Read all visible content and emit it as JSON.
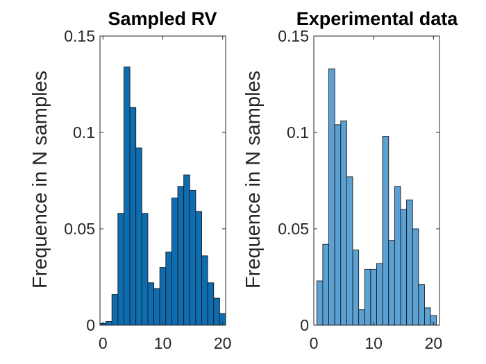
{
  "chart_data": [
    {
      "type": "bar",
      "title": "Sampled RV",
      "xlabel": "",
      "ylabel": "Frequence in N samples",
      "xlim": [
        -0.5,
        20.5
      ],
      "ylim": [
        0,
        0.15
      ],
      "xticks": [
        "0",
        "10",
        "20"
      ],
      "yticks": [
        "0",
        "0.05",
        "0.1",
        "0.15"
      ],
      "bar_color": "#0e6db0",
      "x": [
        0,
        1,
        2,
        3,
        4,
        5,
        6,
        7,
        8,
        9,
        10,
        11,
        12,
        13,
        14,
        15,
        16,
        17,
        18,
        19,
        20
      ],
      "values": [
        0.001,
        0.002,
        0.016,
        0.058,
        0.134,
        0.113,
        0.092,
        0.058,
        0.022,
        0.019,
        0.03,
        0.038,
        0.066,
        0.072,
        0.078,
        0.07,
        0.059,
        0.036,
        0.022,
        0.014,
        0.006
      ],
      "grid": false
    },
    {
      "type": "bar",
      "title": "Experimental data",
      "xlabel": "",
      "ylabel": "Frequence in N samples",
      "xlim": [
        0,
        21
      ],
      "ylim": [
        0,
        0.15
      ],
      "xticks": [
        "0",
        "10",
        "20"
      ],
      "yticks": [
        "0",
        "0.05",
        "0.1",
        "0.15"
      ],
      "bar_color": "#5ba1d4",
      "x": [
        1,
        2,
        3,
        4,
        5,
        6,
        7,
        8,
        9,
        10,
        11,
        12,
        13,
        14,
        15,
        16,
        17,
        18,
        19,
        20
      ],
      "values": [
        0.023,
        0.042,
        0.133,
        0.104,
        0.106,
        0.077,
        0.039,
        0.008,
        0.029,
        0.029,
        0.032,
        0.098,
        0.044,
        0.072,
        0.06,
        0.065,
        0.05,
        0.021,
        0.009,
        0.005
      ],
      "grid": false
    }
  ]
}
